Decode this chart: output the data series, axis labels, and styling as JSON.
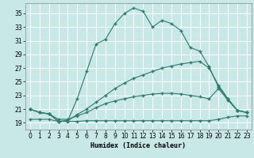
{
  "xlabel": "Humidex (Indice chaleur)",
  "bg_color": "#c8e8e8",
  "grid_color": "#ffffff",
  "line_color": "#2a7a6a",
  "xlim": [
    -0.5,
    23.5
  ],
  "ylim": [
    18.0,
    36.5
  ],
  "yticks": [
    19,
    21,
    23,
    25,
    27,
    29,
    31,
    33,
    35
  ],
  "xticks": [
    0,
    1,
    2,
    3,
    4,
    5,
    6,
    7,
    8,
    9,
    10,
    11,
    12,
    13,
    14,
    15,
    16,
    17,
    18,
    19,
    20,
    21,
    22,
    23
  ],
  "series": [
    {
      "x": [
        0,
        1,
        2,
        3,
        4,
        5,
        6,
        7,
        8,
        9,
        10,
        11,
        12,
        13,
        14,
        15,
        16,
        17,
        18,
        19,
        20,
        21,
        22,
        23
      ],
      "y": [
        21,
        20.5,
        20.3,
        19.2,
        19.3,
        22.5,
        26.5,
        30.5,
        31.2,
        33.5,
        35.0,
        35.8,
        35.3,
        33.0,
        34.0,
        33.5,
        32.5,
        30.0,
        29.5,
        27.2,
        24.2,
        22.5,
        20.8,
        20.5
      ]
    },
    {
      "x": [
        0,
        1,
        2,
        3,
        4,
        5,
        6,
        7,
        8,
        9,
        10,
        11,
        12,
        13,
        14,
        15,
        16,
        17,
        18,
        19,
        20,
        21,
        22,
        23
      ],
      "y": [
        21,
        20.5,
        20.3,
        19.2,
        19.3,
        20.2,
        21.0,
        22.0,
        23.0,
        24.0,
        24.8,
        25.5,
        26.0,
        26.5,
        27.0,
        27.3,
        27.6,
        27.8,
        28.0,
        27.0,
        24.5,
        22.5,
        20.8,
        20.5
      ]
    },
    {
      "x": [
        0,
        1,
        2,
        3,
        4,
        5,
        6,
        7,
        8,
        9,
        10,
        11,
        12,
        13,
        14,
        15,
        16,
        17,
        18,
        19,
        20,
        21,
        22,
        23
      ],
      "y": [
        21,
        20.5,
        20.3,
        19.5,
        19.5,
        20.0,
        20.5,
        21.2,
        21.8,
        22.2,
        22.5,
        22.8,
        23.0,
        23.2,
        23.3,
        23.3,
        23.2,
        23.0,
        22.8,
        22.5,
        24.0,
        22.3,
        20.8,
        20.5
      ]
    },
    {
      "x": [
        0,
        1,
        2,
        3,
        4,
        5,
        6,
        7,
        8,
        9,
        10,
        11,
        12,
        13,
        14,
        15,
        16,
        17,
        18,
        19,
        20,
        21,
        22,
        23
      ],
      "y": [
        19.5,
        19.5,
        19.5,
        19.2,
        19.2,
        19.2,
        19.3,
        19.3,
        19.3,
        19.3,
        19.3,
        19.3,
        19.3,
        19.3,
        19.3,
        19.3,
        19.3,
        19.3,
        19.3,
        19.3,
        19.5,
        19.8,
        20.0,
        20.0
      ]
    }
  ]
}
